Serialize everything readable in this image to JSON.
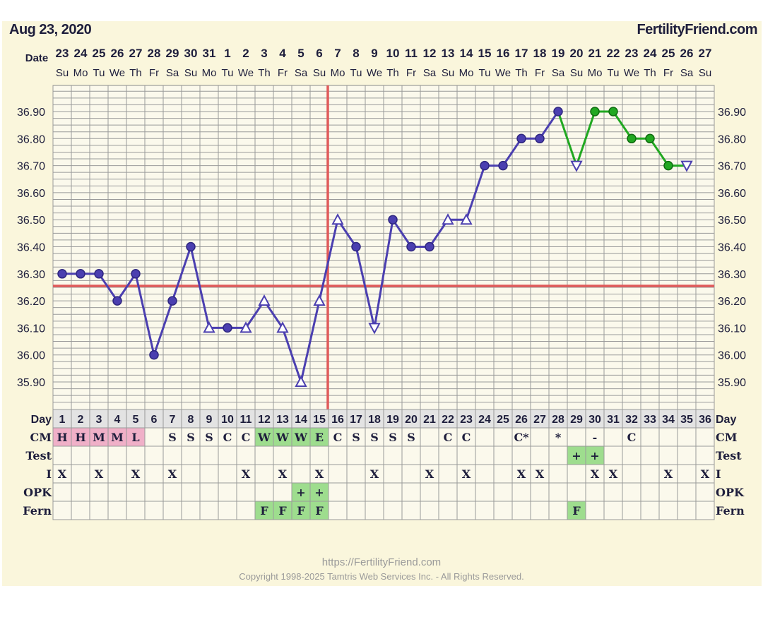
{
  "header": {
    "date": "Aug 23, 2020",
    "brand": "FertilityFriend.com",
    "date_row_label": "Date"
  },
  "footer": {
    "url": "https://FertilityFriend.com",
    "copyright": "Copyright 1998-2025 Tamtris Web Services Inc. - All Rights Reserved."
  },
  "colors": {
    "panel": "#faf6dc",
    "line_before": "#4b3fb0",
    "line_after": "#21a821",
    "reference": "#e05a5a",
    "cm_pink": "#f0b0c8",
    "green_cell": "#9edd8e",
    "day_row": "#e3e3e3",
    "text": "#1e1e3c"
  },
  "chart_data": {
    "type": "line",
    "x": [
      1,
      2,
      3,
      4,
      5,
      6,
      7,
      8,
      9,
      10,
      11,
      12,
      13,
      14,
      15,
      16,
      17,
      18,
      19,
      20,
      21,
      22,
      23,
      24,
      25,
      26,
      27,
      28,
      29,
      30,
      31,
      32,
      33,
      34,
      35,
      36
    ],
    "dates": [
      "23",
      "24",
      "25",
      "26",
      "27",
      "28",
      "29",
      "30",
      "31",
      "1",
      "2",
      "3",
      "4",
      "5",
      "6",
      "7",
      "8",
      "9",
      "10",
      "11",
      "12",
      "13",
      "14",
      "15",
      "16",
      "17",
      "18",
      "19",
      "20",
      "21",
      "22",
      "23",
      "24",
      "25",
      "26",
      "27"
    ],
    "weekdays": [
      "Su",
      "Mo",
      "Tu",
      "We",
      "Th",
      "Fr",
      "Sa",
      "Su",
      "Mo",
      "Tu",
      "We",
      "Th",
      "Fr",
      "Sa",
      "Su",
      "Mo",
      "Tu",
      "We",
      "Th",
      "Fr",
      "Sa",
      "Su",
      "Mo",
      "Tu",
      "We",
      "Th",
      "Fr",
      "Sa",
      "Su",
      "Mo",
      "Tu",
      "We",
      "Th",
      "Fr",
      "Sa",
      "Su"
    ],
    "temperatures": [
      36.3,
      36.3,
      36.3,
      36.2,
      36.3,
      36.0,
      36.2,
      36.4,
      36.1,
      36.1,
      36.1,
      36.2,
      36.1,
      35.9,
      36.2,
      36.5,
      36.4,
      36.1,
      36.5,
      36.4,
      36.4,
      36.5,
      36.5,
      36.7,
      36.7,
      36.8,
      36.8,
      36.9,
      36.7,
      36.9,
      36.9,
      36.8,
      36.8,
      36.7,
      36.7,
      null
    ],
    "markers": [
      "dot",
      "dot",
      "dot",
      "dot",
      "dot",
      "dot",
      "dot",
      "dot",
      "open-up",
      "dot",
      "open-up",
      "open-up",
      "open-up",
      "open-up",
      "open-up",
      "open-up",
      "dot",
      "open-down",
      "dot",
      "dot",
      "dot",
      "open-up",
      "open-up",
      "dot",
      "dot",
      "dot",
      "dot",
      "dot",
      "open-down",
      "dot",
      "dot",
      "dot",
      "dot",
      "dot",
      "open-down",
      null
    ],
    "series_after_day": 28,
    "coverline": 36.255,
    "ovulation_day": 15,
    "y_ticks": [
      "36.90",
      "36.80",
      "36.70",
      "36.60",
      "36.50",
      "36.40",
      "36.30",
      "36.20",
      "36.10",
      "36.00",
      "35.90"
    ],
    "ylim": [
      35.81,
      36.99
    ],
    "grid": true
  },
  "table": {
    "rows": [
      {
        "label": "Day",
        "right": "Day"
      },
      {
        "label": "CM",
        "right": "CM",
        "cells": [
          "H",
          "H",
          "M",
          "M",
          "L",
          "",
          "S",
          "S",
          "S",
          "C",
          "C",
          "W",
          "W",
          "W",
          "E",
          "C",
          "S",
          "S",
          "S",
          "S",
          "",
          "C",
          "C",
          "",
          "",
          "C*",
          "",
          "*",
          "",
          "-",
          "",
          "C",
          "",
          "",
          "",
          ""
        ],
        "colors": [
          "pink",
          "pink",
          "pink",
          "pink",
          "pink",
          "",
          "",
          "",
          "",
          "",
          "",
          "green",
          "green",
          "green",
          "green",
          "",
          "",
          "",
          "",
          "",
          "",
          "",
          "",
          "",
          "",
          "",
          "",
          "",
          "",
          "",
          "",
          "",
          "",
          "",
          "",
          ""
        ]
      },
      {
        "label": "Test",
        "right": "Test",
        "cells": [
          "",
          "",
          "",
          "",
          "",
          "",
          "",
          "",
          "",
          "",
          "",
          "",
          "",
          "",
          "",
          "",
          "",
          "",
          "",
          "",
          "",
          "",
          "",
          "",
          "",
          "",
          "",
          "",
          "+",
          "+",
          "",
          "",
          "",
          "",
          "",
          ""
        ],
        "colors": [
          "",
          "",
          "",
          "",
          "",
          "",
          "",
          "",
          "",
          "",
          "",
          "",
          "",
          "",
          "",
          "",
          "",
          "",
          "",
          "",
          "",
          "",
          "",
          "",
          "",
          "",
          "",
          "",
          "green",
          "green",
          "",
          "",
          "",
          "",
          "",
          ""
        ]
      },
      {
        "label": "I",
        "right": "I",
        "cells": [
          "X",
          "",
          "X",
          "",
          "X",
          "",
          "X",
          "",
          "",
          "",
          "X",
          "",
          "X",
          "",
          "X",
          "",
          "",
          "X",
          "",
          "",
          "X",
          "",
          "X",
          "",
          "",
          "X",
          "X",
          "",
          "",
          "X",
          "X",
          "",
          "",
          "X",
          "",
          "X"
        ],
        "colors": []
      },
      {
        "label": "OPK",
        "right": "OPK",
        "cells": [
          "",
          "",
          "",
          "",
          "",
          "",
          "",
          "",
          "",
          "",
          "",
          "",
          "",
          "+",
          "+",
          "",
          "",
          "",
          "",
          "",
          "",
          "",
          "",
          "",
          "",
          "",
          "",
          "",
          "",
          "",
          "",
          "",
          "",
          "",
          "",
          ""
        ],
        "colors": [
          "",
          "",
          "",
          "",
          "",
          "",
          "",
          "",
          "",
          "",
          "",
          "",
          "",
          "green",
          "green",
          "",
          "",
          "",
          "",
          "",
          "",
          "",
          "",
          "",
          "",
          "",
          "",
          "",
          "",
          "",
          "",
          "",
          "",
          "",
          "",
          ""
        ]
      },
      {
        "label": "Fern",
        "right": "Fern",
        "cells": [
          "",
          "",
          "",
          "",
          "",
          "",
          "",
          "",
          "",
          "",
          "",
          "F",
          "F",
          "F",
          "F",
          "",
          "",
          "",
          "",
          "",
          "",
          "",
          "",
          "",
          "",
          "",
          "",
          "",
          "F",
          "",
          "",
          "",
          "",
          "",
          "",
          ""
        ],
        "colors": [
          "",
          "",
          "",
          "",
          "",
          "",
          "",
          "",
          "",
          "",
          "",
          "green",
          "green",
          "green",
          "green",
          "",
          "",
          "",
          "",
          "",
          "",
          "",
          "",
          "",
          "",
          "",
          "",
          "",
          "green",
          "",
          "",
          "",
          "",
          "",
          "",
          ""
        ]
      }
    ]
  }
}
